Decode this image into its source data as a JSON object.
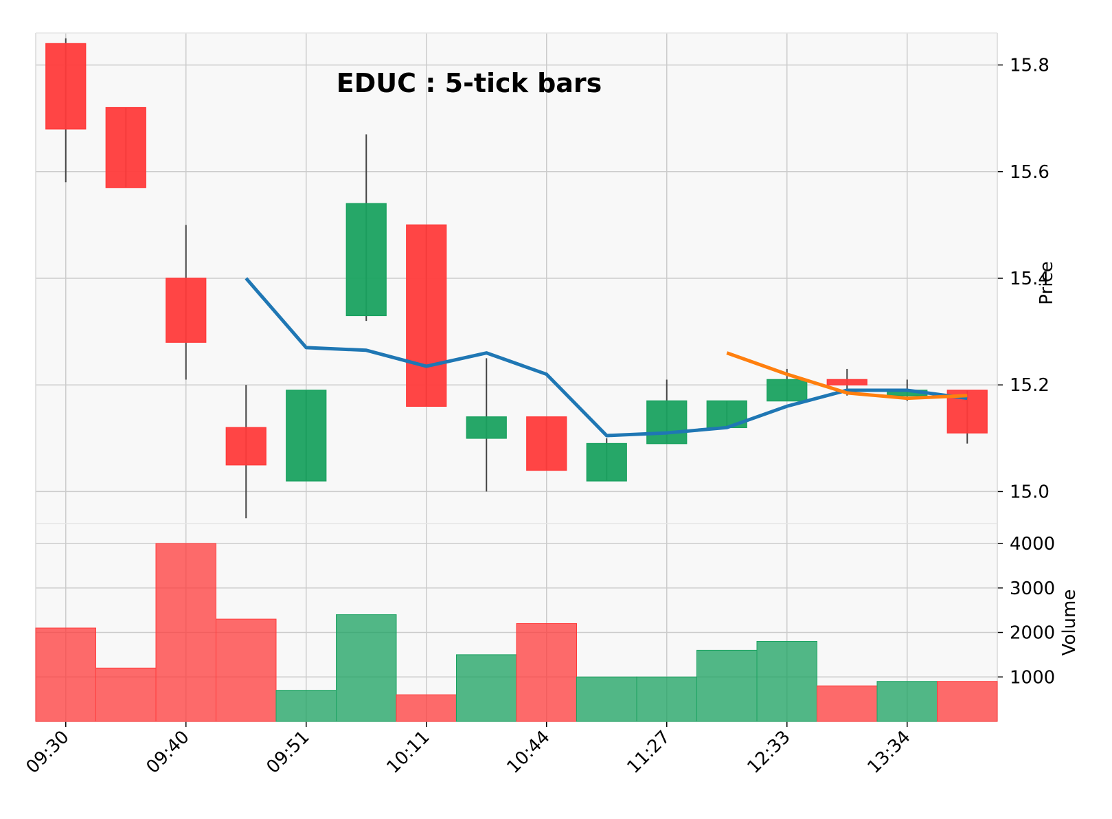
{
  "chart_data": {
    "type": "candlestick",
    "title": "EDUC : 5-tick bars",
    "price_axis_label": "Price",
    "volume_axis_label": "Volume",
    "x_tick_labels": [
      "09:30",
      "09:40",
      "09:51",
      "10:11",
      "10:44",
      "11:27",
      "12:33",
      "13:34"
    ],
    "x_tick_bar_index": [
      0,
      2,
      4,
      6,
      8,
      10,
      12,
      14
    ],
    "price_ylim": [
      14.94,
      15.86
    ],
    "price_ticks": [
      "15.0",
      "15.2",
      "15.4",
      "15.6",
      "15.8"
    ],
    "volume_ylim": [
      0,
      4000
    ],
    "volume_ticks": [
      "1000",
      "2000",
      "3000",
      "4000"
    ],
    "grid": true,
    "colors": {
      "up": "#1aa260",
      "down": "#ff3b3b",
      "ma_fast": "#1f77b4",
      "ma_slow": "#ff7f0e",
      "panel_bg": "#f8f8f8",
      "grid": "#cccccc"
    },
    "bars": [
      {
        "open": 15.84,
        "high": 15.85,
        "low": 15.58,
        "close": 15.68,
        "volume": 2100
      },
      {
        "open": 15.72,
        "high": 15.72,
        "low": 15.57,
        "close": 15.57,
        "volume": 1200
      },
      {
        "open": 15.4,
        "high": 15.5,
        "low": 15.21,
        "close": 15.28,
        "volume": 4000
      },
      {
        "open": 15.12,
        "high": 15.2,
        "low": 14.95,
        "close": 15.05,
        "volume": 2300
      },
      {
        "open": 15.02,
        "high": 15.19,
        "low": 15.02,
        "close": 15.19,
        "volume": 700
      },
      {
        "open": 15.33,
        "high": 15.67,
        "low": 15.32,
        "close": 15.54,
        "volume": 2400
      },
      {
        "open": 15.5,
        "high": 15.5,
        "low": 15.16,
        "close": 15.16,
        "volume": 600
      },
      {
        "open": 15.1,
        "high": 15.25,
        "low": 15.0,
        "close": 15.14,
        "volume": 1500
      },
      {
        "open": 15.14,
        "high": 15.14,
        "low": 15.04,
        "close": 15.04,
        "volume": 2200
      },
      {
        "open": 15.02,
        "high": 15.1,
        "low": 15.02,
        "close": 15.09,
        "volume": 1000
      },
      {
        "open": 15.09,
        "high": 15.21,
        "low": 15.09,
        "close": 15.17,
        "volume": 1000
      },
      {
        "open": 15.12,
        "high": 15.17,
        "low": 15.12,
        "close": 15.17,
        "volume": 1600
      },
      {
        "open": 15.17,
        "high": 15.23,
        "low": 15.17,
        "close": 15.21,
        "volume": 1800
      },
      {
        "open": 15.21,
        "high": 15.23,
        "low": 15.18,
        "close": 15.2,
        "volume": 800
      },
      {
        "open": 15.18,
        "high": 15.21,
        "low": 15.17,
        "close": 15.19,
        "volume": 900
      },
      {
        "open": 15.19,
        "high": 15.19,
        "low": 15.09,
        "close": 15.11,
        "volume": 900
      }
    ],
    "ma_fast": [
      null,
      null,
      null,
      15.4,
      15.27,
      15.265,
      15.235,
      15.26,
      15.22,
      15.105,
      15.11,
      15.12,
      15.16,
      15.19,
      15.19,
      15.175
    ],
    "ma_slow": [
      null,
      null,
      null,
      null,
      null,
      null,
      null,
      null,
      null,
      null,
      null,
      15.26,
      15.22,
      15.185,
      15.175,
      15.18
    ]
  }
}
